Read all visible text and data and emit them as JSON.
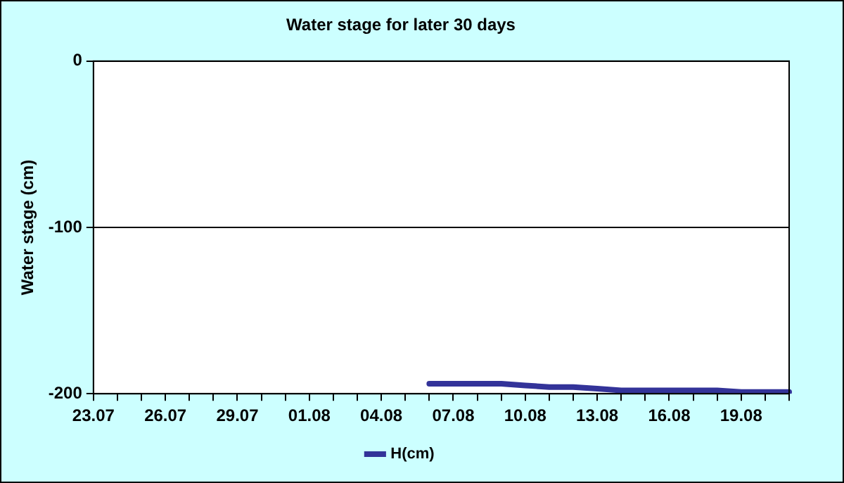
{
  "chart_data": {
    "type": "line",
    "title": "Water stage for later 30 days",
    "ylabel": "Water stage (cm)",
    "categories": [
      "23.07",
      null,
      null,
      "26.07",
      null,
      null,
      "29.07",
      null,
      null,
      "01.08",
      null,
      null,
      "04.08",
      null,
      null,
      "07.08",
      null,
      null,
      "10.08",
      null,
      null,
      "13.08",
      null,
      null,
      "16.08",
      null,
      null,
      "19.08",
      null,
      null
    ],
    "series": [
      {
        "name": "H(cm)",
        "color": "#333399",
        "values": [
          null,
          null,
          null,
          null,
          null,
          null,
          null,
          null,
          null,
          null,
          null,
          null,
          null,
          null,
          -194,
          -194,
          -194,
          -194,
          -195,
          -196,
          -196,
          -197,
          -198,
          -198,
          -198,
          -198,
          -198,
          -199,
          -199,
          -199
        ]
      }
    ],
    "ylim": [
      -200,
      0
    ],
    "yticks": [
      -200,
      -100,
      0
    ],
    "grid": "y",
    "legend": "bottom",
    "marker": "none",
    "line_style": "solid"
  }
}
